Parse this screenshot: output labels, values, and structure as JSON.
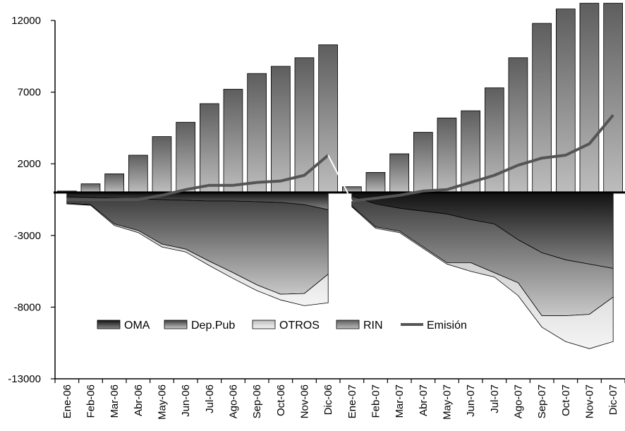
{
  "chart_data": {
    "type": "bar",
    "title": "",
    "xlabel": "",
    "ylabel": "",
    "ylim": [
      -13000,
      12000
    ],
    "yticks": [
      12000,
      7000,
      2000,
      -3000,
      -8000,
      -13000
    ],
    "categories": [
      "Ene-06",
      "Feb-06",
      "Mar-06",
      "Abr-06",
      "May-06",
      "Jun-06",
      "Jul-06",
      "Ago-06",
      "Sep-06",
      "Oct-06",
      "Nov-06",
      "Dic-06",
      "Ene-07",
      "Feb-07",
      "Mar-07",
      "Abr-07",
      "May-07",
      "Jun-07",
      "Jul-07",
      "Ago-07",
      "Sep-07",
      "Oct-07",
      "Nov-07",
      "Dic-07"
    ],
    "legend_position": "lower-center",
    "grid": false,
    "series": [
      {
        "name": "OMA",
        "kind": "stacked-area-negative",
        "color": "#1e1e1e",
        "values": [
          -300,
          -350,
          -400,
          -450,
          -500,
          -550,
          -600,
          -600,
          -650,
          -700,
          -850,
          -1200,
          -250,
          -800,
          -1100,
          -1300,
          -1500,
          -1900,
          -2200,
          -3300,
          -4200,
          -4700,
          -5000,
          -5300
        ]
      },
      {
        "name": "Dep.Pub",
        "kind": "stacked-area-negative",
        "color": "#6f6f6f",
        "values": [
          -450,
          -500,
          -1800,
          -2200,
          -3100,
          -3400,
          -4200,
          -5000,
          -5800,
          -6400,
          -6200,
          -4500,
          -700,
          -1600,
          -1600,
          -2500,
          -3400,
          -3000,
          -3400,
          -3000,
          -4400,
          -3900,
          -3500,
          -2000
        ]
      },
      {
        "name": "OTROS",
        "kind": "stacked-area-negative",
        "color": "#d7d7d7",
        "values": [
          -50,
          -50,
          -100,
          -150,
          -200,
          -200,
          -300,
          -400,
          -400,
          -400,
          -850,
          -2000,
          -50,
          -100,
          -100,
          -100,
          -100,
          -600,
          -300,
          -900,
          -800,
          -1800,
          -2400,
          -3100
        ]
      },
      {
        "name": "RIN",
        "kind": "bar",
        "color": "#8a8a8a",
        "values": [
          100,
          600,
          1300,
          2600,
          3900,
          4900,
          6200,
          7200,
          8300,
          8800,
          9400,
          10300,
          400,
          1400,
          2700,
          4200,
          5200,
          5700,
          7300,
          9400,
          11800,
          12800,
          13200,
          13200
        ]
      },
      {
        "name": "Emisión",
        "kind": "line",
        "color": "#5a5a5a",
        "values": [
          -500,
          -500,
          -500,
          -500,
          -200,
          200,
          500,
          500,
          700,
          800,
          1200,
          2600,
          -600,
          -400,
          -200,
          100,
          200,
          700,
          1200,
          1900,
          2400,
          2600,
          3400,
          5400
        ]
      }
    ]
  }
}
